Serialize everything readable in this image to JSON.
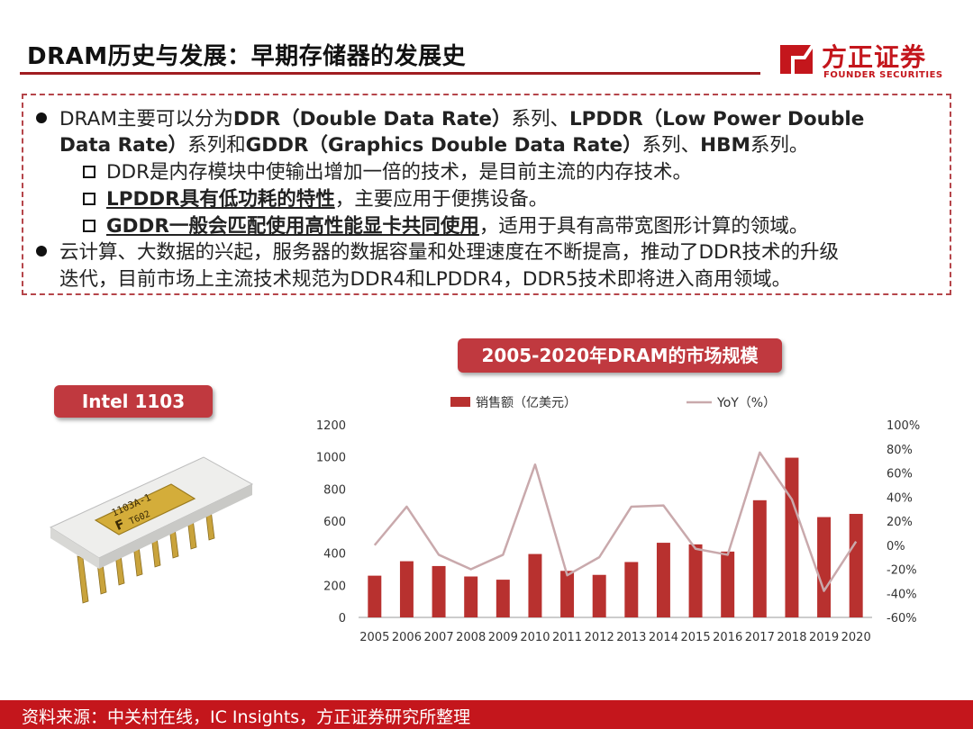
{
  "page": {
    "title": "DRAM历史与发展：早期存储器的发展史",
    "logo": {
      "cn": "方正证券",
      "en": "FOUNDER SECURITIES",
      "icon": "founder-logo-icon"
    },
    "footer": "资料来源：中关村在线，IC Insights，方正证券研究所整理",
    "accent": "#c4161c"
  },
  "textbox": {
    "b1": {
      "l1_a": "DRAM主要可以分为",
      "l1_b": "DDR（Double Data Rate）",
      "l1_c": "系列、",
      "l1_d": "LPDDR（Low Power Double",
      "l2_a": "Data Rate）",
      "l2_b": "系列和",
      "l2_c": "GDDR（Graphics Double Data Rate）",
      "l2_d": "系列、",
      "l2_e": "HBM",
      "l2_f": "系列。"
    },
    "subs": [
      {
        "b": "",
        "text": "DDR是内存模块中使输出增加一倍的技术，是目前主流的内存技术。"
      },
      {
        "b": "LPDDR具有低功耗的特性",
        "text": "，主要应用于便携设备。"
      },
      {
        "b": "GDDR一般会匹配使用高性能显卡共同使用",
        "text": "，适用于具有高带宽图形计算的领域。"
      }
    ],
    "b2": {
      "l1": "云计算、大数据的兴起，服务器的数据容量和处理速度在不断提高，推动了DDR技术的升级",
      "l2": "迭代，目前市场上主流技术规范为DDR4和LPDDR4，DDR5技术即将进入商用领域。"
    }
  },
  "intel": {
    "label": "Intel 1103",
    "chip_text1": "1103A-1",
    "chip_text2": "F",
    "chip_text3": "T602"
  },
  "chart_data": {
    "type": "bar",
    "title": "2005-2020年DRAM的市场规模",
    "categories": [
      "2005",
      "2006",
      "2007",
      "2008",
      "2009",
      "2010",
      "2011",
      "2012",
      "2013",
      "2014",
      "2015",
      "2016",
      "2017",
      "2018",
      "2019",
      "2020"
    ],
    "series": [
      {
        "name": "销售额（亿美元）",
        "type": "bar",
        "axis": "left",
        "color": "#b8312f",
        "values": [
          260,
          350,
          320,
          255,
          235,
          395,
          290,
          265,
          345,
          465,
          455,
          410,
          730,
          995,
          625,
          645
        ]
      },
      {
        "name": "YoY（%）",
        "type": "line",
        "axis": "right",
        "color": "#c9a9ac",
        "values": [
          0,
          32,
          -8,
          -20,
          -8,
          67,
          -25,
          -10,
          32,
          33,
          -3,
          -8,
          77,
          38,
          -38,
          3
        ]
      }
    ],
    "ylim": [
      0,
      1200
    ],
    "y_ticks": [
      0,
      200,
      400,
      600,
      800,
      1000,
      1200
    ],
    "y2lim": [
      -60,
      100
    ],
    "y2_ticks": [
      -60,
      -40,
      -20,
      0,
      20,
      40,
      60,
      80,
      100
    ],
    "y2_tick_labels": [
      "-60%",
      "-40%",
      "-20%",
      "0%",
      "20%",
      "40%",
      "60%",
      "80%",
      "100%"
    ],
    "xlabel": "",
    "ylabel": "",
    "legend": "top-center",
    "grid": false
  }
}
